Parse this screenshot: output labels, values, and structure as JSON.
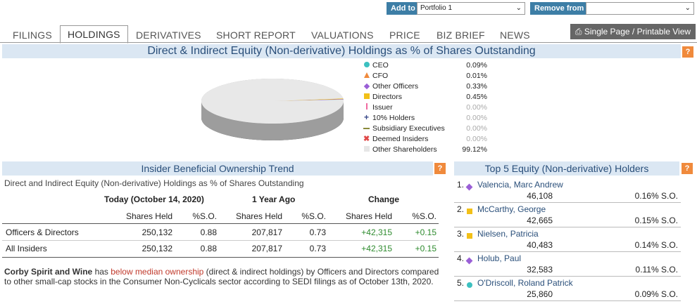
{
  "topbar": {
    "add_label": "Add to",
    "portfolio_value": "Portfolio 1",
    "remove_label": "Remove from",
    "remove_value": ""
  },
  "tabs": [
    "FILINGS",
    "HOLDINGS",
    "DERIVATIVES",
    "SHORT REPORT",
    "VALUATIONS",
    "PRICE",
    "BIZ BRIEF",
    "NEWS"
  ],
  "active_tab": "HOLDINGS",
  "print_label": "Single Page / Printable View",
  "holdings_section": {
    "title": "Direct & Indirect Equity (Non-derivative) Holdings as % of Shares Outstanding",
    "help": "?",
    "legend": [
      {
        "label": "CEO",
        "value": "0.09%",
        "color": "#3cc0c0",
        "icon": "circle",
        "muted": false
      },
      {
        "label": "CFO",
        "value": "0.01%",
        "color": "#f08a3c",
        "icon": "triangle",
        "muted": false
      },
      {
        "label": "Other Officers",
        "value": "0.33%",
        "color": "#9a5fd6",
        "icon": "diamond",
        "muted": false
      },
      {
        "label": "Directors",
        "value": "0.45%",
        "color": "#f2c018",
        "icon": "square",
        "muted": false
      },
      {
        "label": "Issuer",
        "value": "0.00%",
        "color": "#f06aa0",
        "icon": "bar",
        "muted": true
      },
      {
        "label": "10% Holders",
        "value": "0.00%",
        "color": "#3a4a8a",
        "icon": "plus",
        "muted": true
      },
      {
        "label": "Subsidiary Executives",
        "value": "0.00%",
        "color": "#8a8a3a",
        "icon": "dash",
        "muted": true
      },
      {
        "label": "Deemed Insiders",
        "value": "0.00%",
        "color": "#e04848",
        "icon": "cross",
        "muted": true
      },
      {
        "label": "Other Shareholders",
        "value": "99.12%",
        "color": "#e6e6e6",
        "icon": "square",
        "muted": false
      }
    ]
  },
  "trend_section": {
    "title": "Insider Beneficial Ownership Trend",
    "help": "?",
    "subtitle": "Direct and Indirect Equity (Non-derivative) Holdings as % of Shares Outstanding",
    "col_groups": [
      "Today (October 14, 2020)",
      "1 Year Ago",
      "Change"
    ],
    "col_heads": [
      "Shares Held",
      "%S.O.",
      "Shares Held",
      "%S.O.",
      "Shares Held",
      "%S.O."
    ],
    "rows": [
      {
        "label": "Officers & Directors",
        "cells": [
          "250,132",
          "0.88",
          "207,817",
          "0.73",
          "+42,315",
          "+0.15"
        ]
      },
      {
        "label": "All Insiders",
        "cells": [
          "250,132",
          "0.88",
          "207,817",
          "0.73",
          "+42,315",
          "+0.15"
        ]
      }
    ],
    "note_company": "Corby Spirit and Wine",
    "note_has": " has ",
    "note_link": "below median ownership",
    "note_rest": " (direct & indirect holdings) by Officers and Directors compared to other small-cap stocks in the Consumer Non-Cyclicals sector according to SEDI filings as of October 13th, 2020."
  },
  "top5_section": {
    "title": "Top 5 Equity (Non-derivative) Holders",
    "help": "?",
    "holders": [
      {
        "rank": "1.",
        "name": "Valencia, Marc Andrew",
        "shares": "46,108",
        "pct": "0.16% S.O.",
        "color": "#9a5fd6",
        "icon": "diamond"
      },
      {
        "rank": "2.",
        "name": "McCarthy, George",
        "shares": "42,665",
        "pct": "0.15% S.O.",
        "color": "#f2c018",
        "icon": "square"
      },
      {
        "rank": "3.",
        "name": "Nielsen, Patricia",
        "shares": "40,483",
        "pct": "0.14% S.O.",
        "color": "#f2c018",
        "icon": "square"
      },
      {
        "rank": "4.",
        "name": "Holub, Paul",
        "shares": "32,583",
        "pct": "0.11% S.O.",
        "color": "#9a5fd6",
        "icon": "diamond"
      },
      {
        "rank": "5.",
        "name": "O'Driscoll, Roland Patrick",
        "shares": "25,860",
        "pct": "0.09% S.O.",
        "color": "#3cc0c0",
        "icon": "circle"
      }
    ]
  },
  "chart_data": {
    "type": "pie",
    "categories": [
      "CEO",
      "CFO",
      "Other Officers",
      "Directors",
      "Issuer",
      "10% Holders",
      "Subsidiary Executives",
      "Deemed Insiders",
      "Other Shareholders"
    ],
    "values": [
      0.09,
      0.01,
      0.33,
      0.45,
      0.0,
      0.0,
      0.0,
      0.0,
      99.12
    ],
    "title": "Direct & Indirect Equity (Non-derivative) Holdings as % of Shares Outstanding"
  }
}
